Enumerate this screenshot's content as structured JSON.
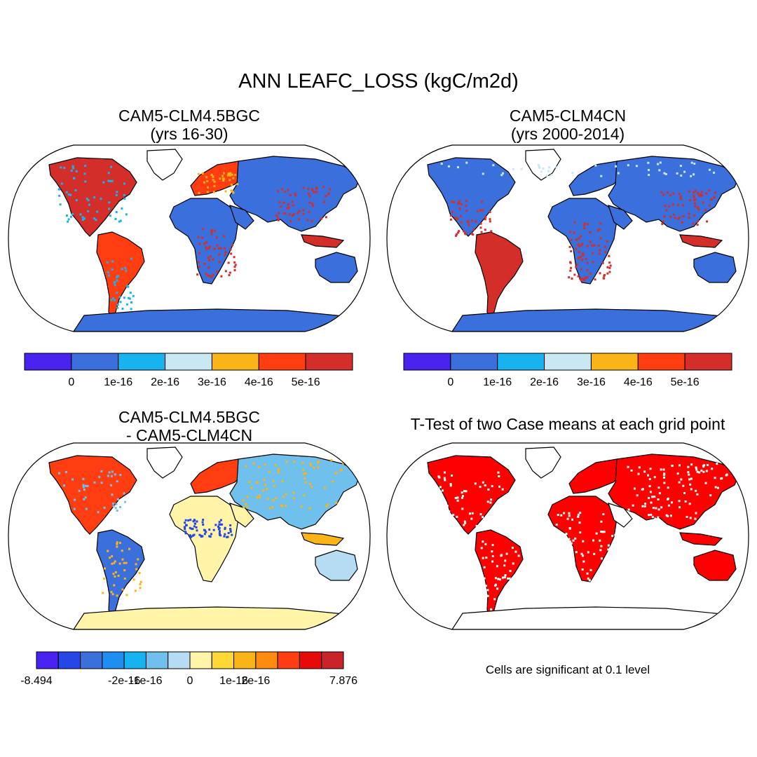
{
  "main_title": "ANN LEAFC_LOSS (kgC/m2d)",
  "panels": [
    {
      "title_line1": "CAM5-CLM4.5BGC",
      "title_line2": "(yrs 16-30)"
    },
    {
      "title_line1": "CAM5-CLM4CN",
      "title_line2": "(yrs 2000-2014)"
    },
    {
      "title_line1": "CAM5-CLM4.5BGC",
      "title_line2": "- CAM5-CLM4CN"
    },
    {
      "title_line1": "T-Test of two Case means at each grid point",
      "title_line2": ""
    }
  ],
  "colorbar_top": {
    "colors": [
      "#4a22f0",
      "#3a6fdc",
      "#16b3f0",
      "#c8e8f4",
      "#fbb418",
      "#ff3d10",
      "#d42e2a"
    ],
    "labels": [
      "0",
      "1e-16",
      "2e-16",
      "3e-16",
      "4e-16",
      "5e-16"
    ]
  },
  "colorbar_diff": {
    "colors": [
      "#4a22f0",
      "#2547e8",
      "#3a6fdc",
      "#1e8ff0",
      "#16b3f0",
      "#6fc0ec",
      "#b5dcf2",
      "#fff4a8",
      "#ffd836",
      "#fbb418",
      "#ff8a10",
      "#ff3d10",
      "#e60a0a",
      "#c8242a"
    ],
    "labels": [
      "-8.494",
      "-2e-16",
      "-1e-16",
      "0",
      "1e-16",
      "2e-16",
      "7.876"
    ]
  },
  "note": "Cells are significant at 0.1 level",
  "chart_data": [
    {
      "type": "heatmap",
      "title": "CAM5-CLM4.5BGC (yrs 16-30)",
      "variable": "LEAFC_LOSS",
      "units": "kgC/m2d",
      "period": "ANN",
      "legend_levels": [
        "0",
        "1e-16",
        "2e-16",
        "3e-16",
        "4e-16",
        "5e-16"
      ]
    },
    {
      "type": "heatmap",
      "title": "CAM5-CLM4CN (yrs 2000-2014)",
      "variable": "LEAFC_LOSS",
      "units": "kgC/m2d",
      "period": "ANN",
      "legend_levels": [
        "0",
        "1e-16",
        "2e-16",
        "3e-16",
        "4e-16",
        "5e-16"
      ]
    },
    {
      "type": "heatmap",
      "title": "CAM5-CLM4.5BGC - CAM5-CLM4CN",
      "variable": "LEAFC_LOSS difference",
      "legend_levels": [
        "-8.494",
        "-2e-16",
        "-1e-16",
        "0",
        "1e-16",
        "2e-16",
        "7.876"
      ],
      "min": -8.494,
      "max": 7.876
    },
    {
      "type": "heatmap",
      "title": "T-Test of two Case means at each grid point",
      "significance_level": 0.1
    }
  ]
}
